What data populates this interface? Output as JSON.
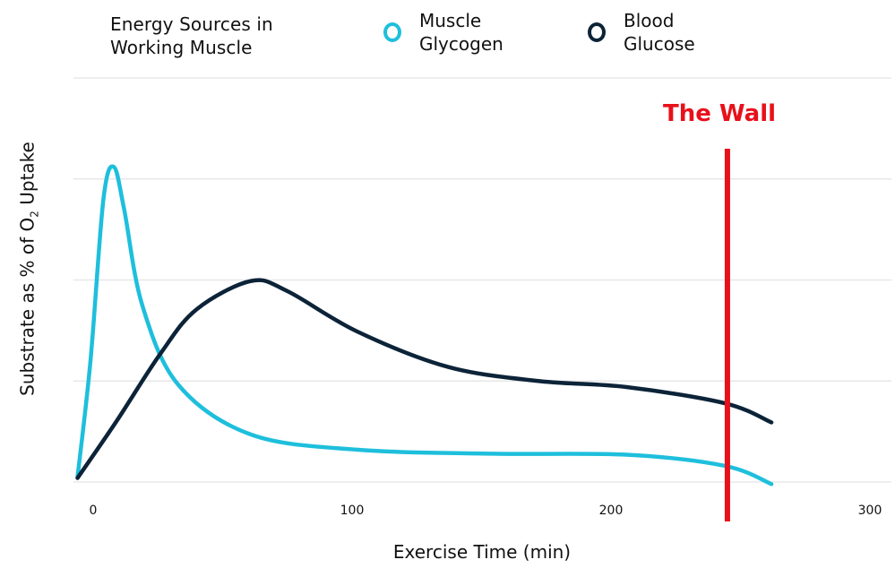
{
  "chart_data": {
    "type": "line",
    "title": "Energy Sources in Working Muscle",
    "title_lines": [
      "Energy Sources in",
      "Working Muscle"
    ],
    "xlabel": "Exercise Time (min)",
    "ylabel": "Substrate as % of O₂ Uptake",
    "ylabel_parts": {
      "before": "Substrate as % of O",
      "sub": "2",
      "after": " Uptake"
    },
    "xlim": [
      -5,
      310
    ],
    "ylim": [
      0,
      4
    ],
    "x_ticks": [
      0,
      100,
      200,
      300
    ],
    "x_tick_labels": [
      "0",
      "100",
      "200",
      "300"
    ],
    "y_gridlines": [
      0,
      1,
      2,
      3,
      4
    ],
    "y_tick_labels": [],
    "grid": true,
    "legend_position": "top",
    "series": [
      {
        "name": "Muscle Glycogen",
        "legend_lines": [
          "Muscle",
          "Glycogen"
        ],
        "color": "#1ebfdc",
        "x": [
          -5,
          0,
          5,
          9,
          13,
          20,
          34,
          62,
          103,
          155,
          207,
          245,
          263
        ],
        "y": [
          0.05,
          1.2,
          2.8,
          3.12,
          2.7,
          1.75,
          0.96,
          0.47,
          0.32,
          0.28,
          0.27,
          0.16,
          -0.02
        ]
      },
      {
        "name": "Blood Glucose",
        "legend_lines": [
          "Blood",
          "Glucose"
        ],
        "color": "#0c2338",
        "x": [
          -5,
          10,
          27,
          41,
          62,
          76,
          103,
          138,
          173,
          207,
          245,
          263
        ],
        "y": [
          0.04,
          0.6,
          1.27,
          1.71,
          1.99,
          1.89,
          1.49,
          1.14,
          1.0,
          0.94,
          0.78,
          0.59
        ]
      }
    ],
    "annotations": [
      {
        "type": "vline",
        "label": "The Wall",
        "x": 246,
        "color": "#e8101a"
      }
    ]
  }
}
